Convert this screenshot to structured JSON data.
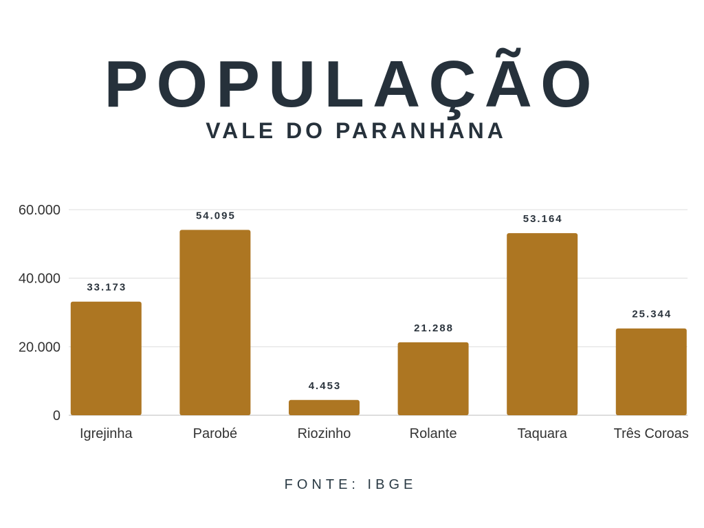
{
  "chart_data": {
    "type": "bar",
    "title": "POPULAÇÃO",
    "subtitle": "VALE DO PARANHANA",
    "source": "FONTE: IBGE",
    "categories": [
      "Igrejinha",
      "Parobé",
      "Riozinho",
      "Rolante",
      "Taquara",
      "Três Coroas"
    ],
    "values": [
      33173,
      54095,
      4453,
      21288,
      53164,
      25344
    ],
    "value_labels": [
      "33.173",
      "54.095",
      "4.453",
      "21.288",
      "53.164",
      "25.344"
    ],
    "color": "#ad7622",
    "ylim": [
      0,
      60000
    ],
    "yticks": [
      0,
      {
        "value": 20000,
        "label": "20.000"
      },
      {
        "value": 40000,
        "label": "40.000"
      },
      {
        "value": 60000,
        "label": "60.000"
      }
    ],
    "grid": true
  }
}
